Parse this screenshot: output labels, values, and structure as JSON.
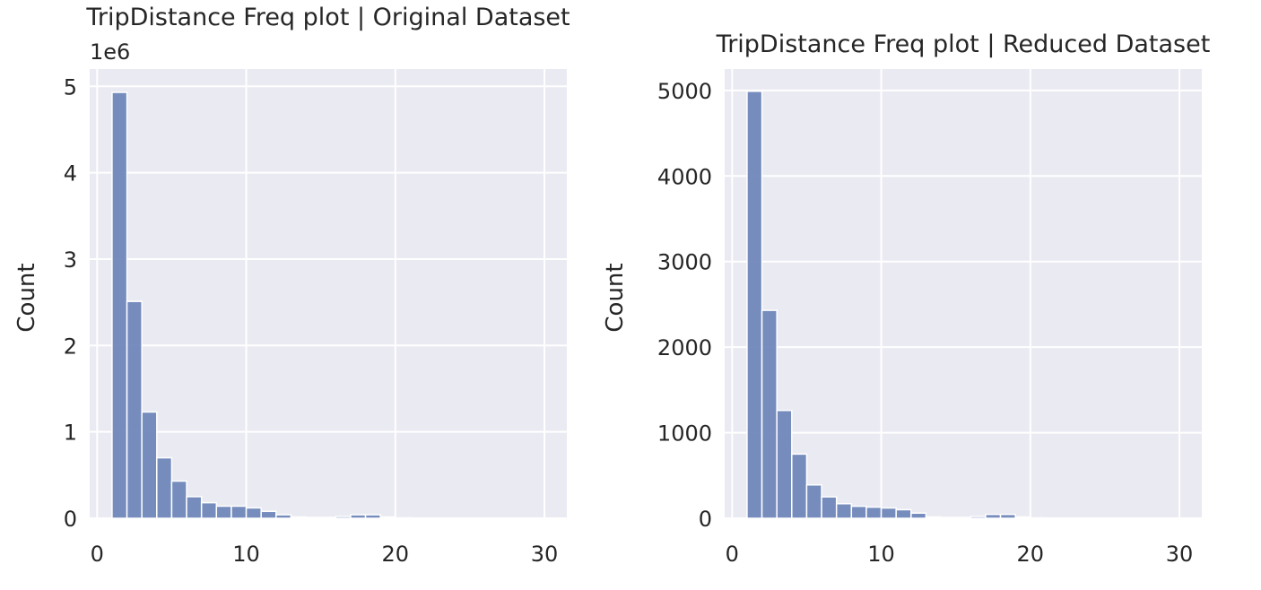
{
  "chart_data": [
    {
      "type": "bar",
      "title": "TripDistance Freq plot | Original Dataset",
      "xlabel": "",
      "ylabel": "Count",
      "y_offset_label": "1e6",
      "xlim": [
        -0.5,
        31.5
      ],
      "ylim": [
        0,
        5.2
      ],
      "xticks": [
        0,
        10,
        20,
        30
      ],
      "xtick_labels": [
        "0",
        "10",
        "20",
        "30"
      ],
      "yticks": [
        0,
        1,
        2,
        3,
        4,
        5
      ],
      "ytick_labels": [
        "0",
        "1",
        "2",
        "3",
        "4",
        "5"
      ],
      "grid": true,
      "color": "#6a83b9",
      "bin_edges": [
        1.0,
        2.0,
        3.0,
        4.0,
        5.0,
        6.0,
        7.0,
        8.0,
        9.0,
        10.0,
        11.0,
        12.0,
        13.0,
        14.0,
        15.0,
        16.0,
        17.0,
        18.0,
        19.0,
        20.0,
        21.0,
        22.0,
        23.0,
        24.0,
        25.0,
        26.0,
        27.0,
        28.0,
        29.0,
        30.0
      ],
      "values": [
        4.93,
        2.51,
        1.23,
        0.7,
        0.43,
        0.25,
        0.18,
        0.14,
        0.14,
        0.12,
        0.08,
        0.04,
        0.015,
        0.01,
        0.01,
        0.02,
        0.04,
        0.04,
        0.015,
        0.005,
        0.003,
        0.002,
        0.002,
        0.001,
        0.001,
        0.001,
        0.001,
        0.001,
        0.001
      ]
    },
    {
      "type": "bar",
      "title": "TripDistance Freq plot | Reduced Dataset",
      "xlabel": "",
      "ylabel": "Count",
      "xlim": [
        -0.5,
        31.5
      ],
      "ylim": [
        0,
        5250
      ],
      "xticks": [
        0,
        10,
        20,
        30
      ],
      "xtick_labels": [
        "0",
        "10",
        "20",
        "30"
      ],
      "yticks": [
        0,
        1000,
        2000,
        3000,
        4000,
        5000
      ],
      "ytick_labels": [
        "0",
        "1000",
        "2000",
        "3000",
        "4000",
        "5000"
      ],
      "grid": true,
      "color": "#6a83b9",
      "bin_edges": [
        1.0,
        2.0,
        3.0,
        4.0,
        5.0,
        6.0,
        7.0,
        8.0,
        9.0,
        10.0,
        11.0,
        12.0,
        13.0,
        14.0,
        15.0,
        16.0,
        17.0,
        18.0,
        19.0,
        20.0,
        21.0,
        22.0,
        23.0,
        24.0,
        25.0,
        26.0,
        27.0,
        28.0,
        29.0,
        30.0
      ],
      "values": [
        4990,
        2430,
        1260,
        750,
        390,
        250,
        170,
        140,
        130,
        120,
        100,
        60,
        15,
        10,
        10,
        20,
        45,
        45,
        15,
        5,
        3,
        2,
        2,
        1,
        1,
        1,
        1,
        1,
        1
      ]
    }
  ]
}
